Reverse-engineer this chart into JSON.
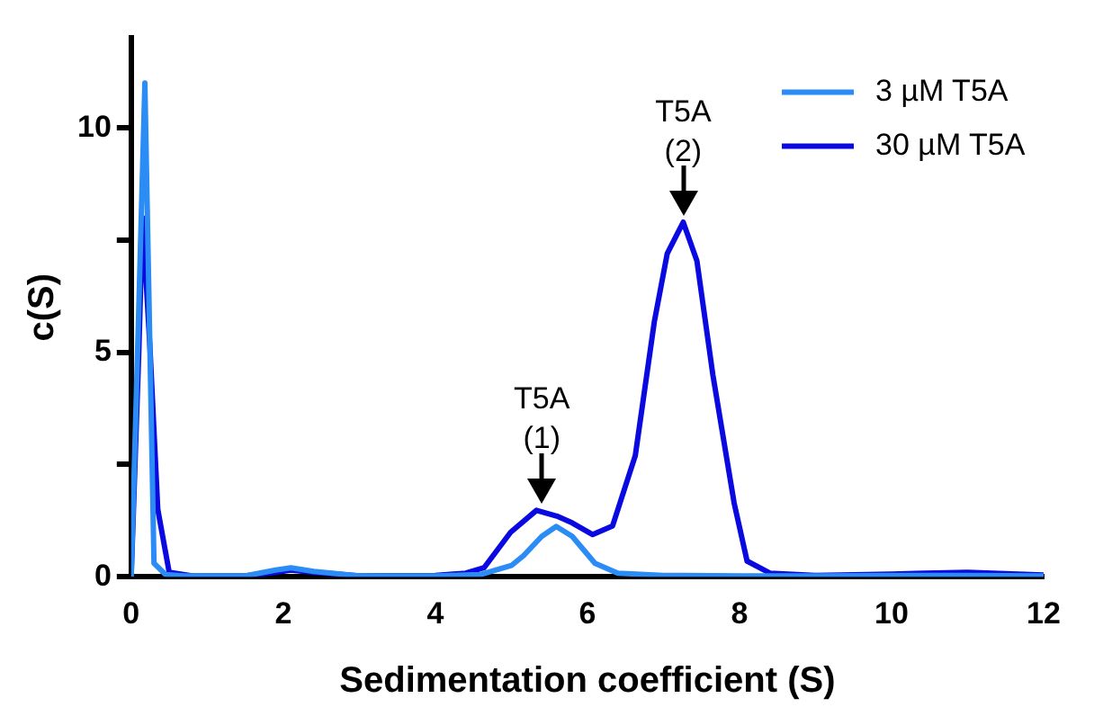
{
  "chart_data": {
    "type": "line",
    "xlabel": "Sedimentation coefficient (S)",
    "ylabel": "c(S)",
    "xlim": [
      0,
      12
    ],
    "xticks": [
      0,
      2,
      4,
      6,
      8,
      10,
      12
    ],
    "ylim": [
      0,
      12
    ],
    "yticks": [
      0,
      {
        "value": 2.5,
        "label": null
      },
      5,
      {
        "value": 7.5,
        "label": null
      },
      10
    ],
    "grid": false,
    "legend": "top right",
    "marker": "none",
    "line_style": "solid",
    "series": [
      {
        "name": "3 µM T5A",
        "color": "#2a8cf4",
        "x": [
          0,
          0.1,
          0.18,
          0.3,
          0.45,
          0.7,
          1.5,
          1.9,
          2.1,
          2.4,
          3,
          4,
          4.6,
          5.0,
          5.16,
          5.4,
          5.59,
          5.8,
          6.1,
          6.4,
          7,
          8,
          9,
          10,
          11,
          12
        ],
        "values": [
          0,
          6,
          11,
          0.3,
          0.05,
          0.02,
          0.02,
          0.15,
          0.2,
          0.12,
          0.02,
          0.02,
          0.05,
          0.25,
          0.47,
          0.9,
          1.12,
          0.9,
          0.3,
          0.08,
          0.03,
          0.02,
          0.02,
          0.03,
          0.03,
          0.02
        ]
      },
      {
        "name": "30 µM T5A",
        "color": "#0a0ae0",
        "x": [
          0,
          0.1,
          0.15,
          0.25,
          0.35,
          0.5,
          0.8,
          1.5,
          1.9,
          2.1,
          2.4,
          3,
          4,
          4.4,
          4.64,
          4.99,
          5.33,
          5.6,
          5.8,
          6.07,
          6.33,
          6.63,
          6.88,
          7.05,
          7.26,
          7.44,
          7.65,
          7.93,
          8.1,
          8.4,
          9,
          10,
          11,
          12
        ],
        "values": [
          0,
          5,
          8,
          5,
          1.5,
          0.1,
          0.02,
          0.02,
          0.1,
          0.15,
          0.1,
          0.02,
          0.03,
          0.08,
          0.2,
          0.99,
          1.48,
          1.35,
          1.2,
          0.94,
          1.13,
          2.7,
          5.68,
          7.2,
          7.9,
          7.04,
          4.5,
          1.64,
          0.35,
          0.08,
          0.03,
          0.06,
          0.1,
          0.04
        ]
      }
    ],
    "annotations": [
      {
        "text": "T5A (1)",
        "x": 5.4,
        "y": 1.5
      },
      {
        "text": "T5A (2)",
        "x": 7.26,
        "y": 7.9
      }
    ]
  }
}
